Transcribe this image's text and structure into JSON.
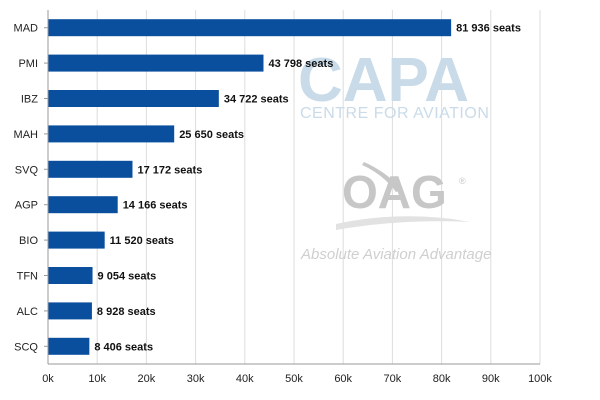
{
  "chart_data": {
    "type": "bar",
    "orientation": "horizontal",
    "categories": [
      "MAD",
      "PMI",
      "IBZ",
      "MAH",
      "SVQ",
      "AGP",
      "BIO",
      "TFN",
      "ALC",
      "SCQ"
    ],
    "values": [
      81936,
      43798,
      34722,
      25650,
      17172,
      14166,
      11520,
      9054,
      8928,
      8406
    ],
    "value_labels": [
      "81 936 seats",
      "43 798 seats",
      "34 722 seats",
      "25 650 seats",
      "17 172 seats",
      "14 166 seats",
      "11 520 seats",
      "9 054 seats",
      "8 928 seats",
      "8 406 seats"
    ],
    "xlim": [
      0,
      100000
    ],
    "x_ticks": [
      0,
      10000,
      20000,
      30000,
      40000,
      50000,
      60000,
      70000,
      80000,
      90000,
      100000
    ],
    "x_tick_labels": [
      "0k",
      "10k",
      "20k",
      "30k",
      "40k",
      "50k",
      "60k",
      "70k",
      "80k",
      "90k",
      "100k"
    ],
    "grid": "vertical",
    "bar_color": "#0a4f9e"
  },
  "watermarks": {
    "capa_logo": "CAPA",
    "capa_subtitle": "CENTRE FOR AVIATION",
    "oag_logo": "OAG",
    "oag_registered": "®",
    "oag_tagline": "Absolute Aviation Advantage"
  }
}
